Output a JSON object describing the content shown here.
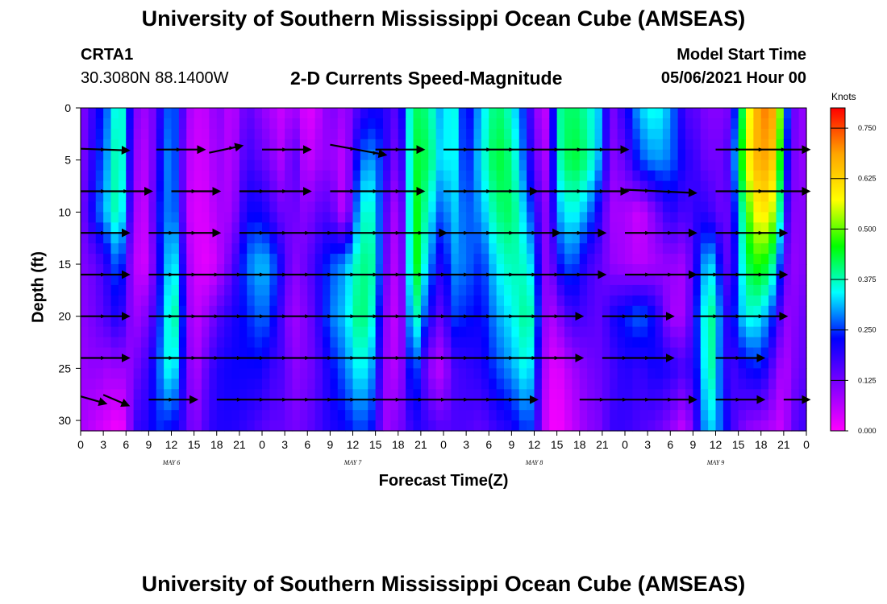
{
  "title_top": "University of Southern Mississippi Ocean Cube (AMSEAS)",
  "title_bottom": "University of Southern Mississippi Ocean Cube (AMSEAS)",
  "station": {
    "id": "CRTA1",
    "location": "30.3080N  88.1400W"
  },
  "model_start": {
    "label": "Model Start Time",
    "value": "05/06/2021 Hour 00"
  },
  "chart_data": {
    "type": "heatmap",
    "title": "2-D Currents Speed-Magnitude",
    "xlabel": "Forecast Time(Z)",
    "ylabel": "Depth (ft)",
    "x_range_hours": [
      0,
      96
    ],
    "ylim": [
      0,
      31
    ],
    "y_inverted": true,
    "x_ticks": [
      "0",
      "3",
      "6",
      "9",
      "12",
      "15",
      "18",
      "21",
      "0",
      "3",
      "6",
      "9",
      "12",
      "15",
      "18",
      "21",
      "0",
      "3",
      "6",
      "9",
      "12",
      "15",
      "18",
      "21",
      "0",
      "3",
      "6",
      "9",
      "12",
      "15",
      "18",
      "21",
      "0"
    ],
    "y_ticks": [
      "0",
      "5",
      "10",
      "15",
      "20",
      "25",
      "30"
    ],
    "y_tick_values": [
      0,
      5,
      10,
      15,
      20,
      25,
      30
    ],
    "date_labels": [
      {
        "label": "MAY  6",
        "hour": 12
      },
      {
        "label": "MAY  7",
        "hour": 36
      },
      {
        "label": "MAY  8",
        "hour": 60
      },
      {
        "label": "MAY  9",
        "hour": 84
      }
    ],
    "colorbar": {
      "unit": "Knots",
      "range": [
        0,
        0.8
      ],
      "tick_labels": [
        "0.750",
        "0.625",
        "0.500",
        "0.375",
        "0.250",
        "0.125",
        "0.000"
      ],
      "tick_values": [
        0.75,
        0.625,
        0.5,
        0.375,
        0.25,
        0.125,
        0.0
      ],
      "stops": [
        "#ff00ff",
        "#8000ff",
        "#0000ff",
        "#00ffff",
        "#00ff00",
        "#ffff00",
        "#ffa500",
        "#ff0000"
      ]
    },
    "speed_profile": [
      {
        "hour": 0,
        "values": [
          0.1,
          0.1,
          0.11,
          0.11,
          0.1,
          0.09,
          0.08
        ]
      },
      {
        "hour": 2,
        "values": [
          0.2,
          0.22,
          0.25,
          0.14,
          0.13,
          0.1,
          0.05
        ]
      },
      {
        "hour": 4,
        "values": [
          0.3,
          0.33,
          0.35,
          0.22,
          0.18,
          0.08,
          0.02
        ]
      },
      {
        "hour": 5,
        "values": [
          0.4,
          0.42,
          0.4,
          0.3,
          0.22,
          0.1,
          0.0
        ]
      },
      {
        "hour": 6,
        "values": [
          0.32,
          0.3,
          0.28,
          0.18,
          0.15,
          0.08,
          0.03
        ]
      },
      {
        "hour": 7,
        "values": [
          0.12,
          0.1,
          0.08,
          0.06,
          0.08,
          0.12,
          0.18
        ]
      },
      {
        "hour": 9,
        "values": [
          0.08,
          0.06,
          0.05,
          0.04,
          0.12,
          0.18,
          0.2
        ]
      },
      {
        "hour": 10,
        "values": [
          0.16,
          0.18,
          0.22,
          0.18,
          0.2,
          0.25,
          0.25
        ]
      },
      {
        "hour": 12,
        "values": [
          0.3,
          0.32,
          0.3,
          0.36,
          0.4,
          0.38,
          0.22
        ]
      },
      {
        "hour": 13,
        "values": [
          0.22,
          0.2,
          0.24,
          0.3,
          0.36,
          0.28,
          0.2
        ]
      },
      {
        "hour": 14,
        "values": [
          0.1,
          0.08,
          0.06,
          0.1,
          0.12,
          0.15,
          0.16
        ]
      },
      {
        "hour": 15,
        "values": [
          0.05,
          0.04,
          0.03,
          0.04,
          0.05,
          0.06,
          0.1
        ]
      },
      {
        "hour": 17,
        "values": [
          0.06,
          0.05,
          0.04,
          0.02,
          0.1,
          0.16,
          0.18
        ]
      },
      {
        "hour": 18,
        "values": [
          0.12,
          0.1,
          0.08,
          0.05,
          0.15,
          0.2,
          0.2
        ]
      },
      {
        "hour": 20,
        "values": [
          0.05,
          0.06,
          0.08,
          0.14,
          0.2,
          0.22,
          0.2
        ]
      },
      {
        "hour": 22,
        "values": [
          0.15,
          0.18,
          0.22,
          0.28,
          0.24,
          0.22,
          0.18
        ]
      },
      {
        "hour": 24,
        "values": [
          0.1,
          0.14,
          0.22,
          0.32,
          0.28,
          0.22,
          0.15
        ]
      },
      {
        "hour": 25,
        "values": [
          0.08,
          0.12,
          0.18,
          0.3,
          0.26,
          0.18,
          0.14
        ]
      },
      {
        "hour": 27,
        "values": [
          0.04,
          0.06,
          0.12,
          0.18,
          0.14,
          0.16,
          0.14
        ]
      },
      {
        "hour": 28,
        "values": [
          0.1,
          0.18,
          0.14,
          0.1,
          0.08,
          0.1,
          0.12
        ]
      },
      {
        "hour": 30,
        "values": [
          0.02,
          0.04,
          0.1,
          0.14,
          0.12,
          0.12,
          0.14
        ]
      },
      {
        "hour": 31,
        "values": [
          0.04,
          0.08,
          0.14,
          0.18,
          0.16,
          0.14,
          0.16
        ]
      },
      {
        "hour": 33,
        "values": [
          0.12,
          0.1,
          0.16,
          0.26,
          0.28,
          0.22,
          0.2
        ]
      },
      {
        "hour": 35,
        "values": [
          0.08,
          0.05,
          0.04,
          0.3,
          0.32,
          0.28,
          0.22
        ]
      },
      {
        "hour": 37,
        "values": [
          0.18,
          0.28,
          0.36,
          0.4,
          0.42,
          0.36,
          0.26
        ]
      },
      {
        "hour": 39,
        "values": [
          0.22,
          0.3,
          0.36,
          0.38,
          0.34,
          0.28,
          0.22
        ]
      },
      {
        "hour": 40,
        "values": [
          0.2,
          0.22,
          0.18,
          0.16,
          0.12,
          0.1,
          0.08
        ]
      },
      {
        "hour": 42,
        "values": [
          0.14,
          0.1,
          0.05,
          0.04,
          0.04,
          0.06,
          0.12
        ]
      },
      {
        "hour": 43,
        "values": [
          0.3,
          0.26,
          0.22,
          0.2,
          0.18,
          0.16,
          0.14
        ]
      },
      {
        "hour": 44,
        "values": [
          0.42,
          0.44,
          0.48,
          0.5,
          0.42,
          0.3,
          0.2
        ]
      },
      {
        "hour": 46,
        "values": [
          0.4,
          0.42,
          0.36,
          0.3,
          0.22,
          0.1,
          0.18
        ]
      },
      {
        "hour": 48,
        "values": [
          0.28,
          0.3,
          0.24,
          0.18,
          0.12,
          0.05,
          0.15
        ]
      },
      {
        "hour": 49,
        "values": [
          0.4,
          0.38,
          0.34,
          0.3,
          0.26,
          0.16,
          0.16
        ]
      },
      {
        "hour": 51,
        "values": [
          0.2,
          0.22,
          0.26,
          0.28,
          0.24,
          0.18,
          0.16
        ]
      },
      {
        "hour": 53,
        "values": [
          0.32,
          0.34,
          0.3,
          0.24,
          0.22,
          0.2,
          0.14
        ]
      },
      {
        "hour": 55,
        "values": [
          0.42,
          0.44,
          0.4,
          0.34,
          0.3,
          0.26,
          0.18
        ]
      },
      {
        "hour": 57,
        "values": [
          0.36,
          0.4,
          0.42,
          0.38,
          0.34,
          0.3,
          0.2
        ]
      },
      {
        "hour": 59,
        "values": [
          0.22,
          0.24,
          0.3,
          0.36,
          0.4,
          0.36,
          0.26
        ]
      },
      {
        "hour": 60,
        "values": [
          0.12,
          0.16,
          0.22,
          0.3,
          0.36,
          0.3,
          0.24
        ]
      },
      {
        "hour": 61,
        "values": [
          0.06,
          0.08,
          0.12,
          0.14,
          0.14,
          0.1,
          0.08
        ]
      },
      {
        "hour": 62,
        "values": [
          0.06,
          0.08,
          0.1,
          0.08,
          0.06,
          0.04,
          0.02
        ]
      },
      {
        "hour": 63,
        "values": [
          0.38,
          0.36,
          0.3,
          0.22,
          0.1,
          0.02,
          0.0
        ]
      },
      {
        "hour": 65,
        "values": [
          0.42,
          0.44,
          0.36,
          0.28,
          0.18,
          0.08,
          0.05
        ]
      },
      {
        "hour": 67,
        "values": [
          0.38,
          0.4,
          0.3,
          0.18,
          0.16,
          0.12,
          0.1
        ]
      },
      {
        "hour": 69,
        "values": [
          0.3,
          0.28,
          0.18,
          0.14,
          0.14,
          0.14,
          0.12
        ]
      },
      {
        "hour": 70,
        "values": [
          0.1,
          0.1,
          0.08,
          0.1,
          0.2,
          0.16,
          0.18
        ]
      },
      {
        "hour": 72,
        "values": [
          0.2,
          0.14,
          0.08,
          0.08,
          0.24,
          0.2,
          0.18
        ]
      },
      {
        "hour": 74,
        "values": [
          0.32,
          0.26,
          0.04,
          0.06,
          0.28,
          0.18,
          0.16
        ]
      },
      {
        "hour": 76,
        "values": [
          0.36,
          0.3,
          0.12,
          0.08,
          0.22,
          0.22,
          0.14
        ]
      },
      {
        "hour": 78,
        "values": [
          0.3,
          0.28,
          0.2,
          0.1,
          0.08,
          0.2,
          0.1
        ]
      },
      {
        "hour": 80,
        "values": [
          0.16,
          0.2,
          0.16,
          0.08,
          0.08,
          0.16,
          0.04
        ]
      },
      {
        "hour": 82,
        "values": [
          0.14,
          0.16,
          0.2,
          0.26,
          0.3,
          0.26,
          0.24
        ]
      },
      {
        "hour": 83,
        "values": [
          0.1,
          0.12,
          0.18,
          0.34,
          0.4,
          0.42,
          0.34
        ]
      },
      {
        "hour": 84,
        "values": [
          0.12,
          0.14,
          0.16,
          0.3,
          0.38,
          0.34,
          0.3
        ]
      },
      {
        "hour": 85,
        "values": [
          0.1,
          0.12,
          0.12,
          0.16,
          0.2,
          0.22,
          0.26
        ]
      },
      {
        "hour": 86,
        "values": [
          0.14,
          0.2,
          0.16,
          0.14,
          0.2,
          0.16,
          0.18
        ]
      },
      {
        "hour": 88,
        "values": [
          0.52,
          0.56,
          0.46,
          0.42,
          0.36,
          0.22,
          0.1
        ]
      },
      {
        "hour": 90,
        "values": [
          0.72,
          0.7,
          0.62,
          0.48,
          0.34,
          0.24,
          0.08
        ]
      },
      {
        "hour": 92,
        "values": [
          0.68,
          0.62,
          0.52,
          0.36,
          0.22,
          0.12,
          0.06
        ]
      },
      {
        "hour": 93,
        "values": [
          0.36,
          0.3,
          0.24,
          0.16,
          0.1,
          0.06,
          0.04
        ]
      },
      {
        "hour": 94,
        "values": [
          0.16,
          0.14,
          0.12,
          0.1,
          0.1,
          0.1,
          0.14
        ]
      },
      {
        "hour": 95,
        "values": [
          0.1,
          0.1,
          0.1,
          0.1,
          0.12,
          0.14,
          0.16
        ]
      },
      {
        "hour": 96,
        "values": [
          0.1,
          0.1,
          0.12,
          0.12,
          0.14,
          0.14,
          0.18
        ]
      }
    ],
    "profile_depths": [
      0,
      5,
      10,
      15,
      20,
      25,
      31
    ],
    "vector_rows": [
      {
        "depth": 4,
        "segments": [
          {
            "from": 0,
            "to": 6,
            "dir": 2
          },
          {
            "from": 10,
            "to": 16,
            "dir": 0
          },
          {
            "from": 17,
            "to": 21,
            "dir": -8
          },
          {
            "from": 24,
            "to": 30,
            "dir": 0
          },
          {
            "from": 33,
            "to": 40,
            "dir": 12
          },
          {
            "from": 39,
            "to": 45,
            "dir": 0
          },
          {
            "from": 48,
            "to": 72,
            "dir": 0
          },
          {
            "from": 84,
            "to": 96,
            "dir": 0
          }
        ]
      },
      {
        "depth": 8,
        "segments": [
          {
            "from": 0,
            "to": 9,
            "dir": 0
          },
          {
            "from": 12,
            "to": 18,
            "dir": 0
          },
          {
            "from": 21,
            "to": 30,
            "dir": 0
          },
          {
            "from": 33,
            "to": 45,
            "dir": 0
          },
          {
            "from": 48,
            "to": 60,
            "dir": 0
          },
          {
            "from": 60,
            "to": 72,
            "dir": 0
          },
          {
            "from": 72,
            "to": 81,
            "dir": 4
          },
          {
            "from": 84,
            "to": 96,
            "dir": 0
          }
        ]
      },
      {
        "depth": 12,
        "segments": [
          {
            "from": 0,
            "to": 6,
            "dir": 0
          },
          {
            "from": 9,
            "to": 18,
            "dir": 0
          },
          {
            "from": 21,
            "to": 48,
            "dir": 0
          },
          {
            "from": 48,
            "to": 63,
            "dir": 0
          },
          {
            "from": 63,
            "to": 69,
            "dir": 0
          },
          {
            "from": 72,
            "to": 81,
            "dir": 0
          },
          {
            "from": 84,
            "to": 93,
            "dir": 0
          }
        ]
      },
      {
        "depth": 16,
        "segments": [
          {
            "from": 0,
            "to": 6,
            "dir": 0
          },
          {
            "from": 9,
            "to": 69,
            "dir": 0
          },
          {
            "from": 72,
            "to": 81,
            "dir": 0
          },
          {
            "from": 81,
            "to": 93,
            "dir": 0
          }
        ]
      },
      {
        "depth": 20,
        "segments": [
          {
            "from": 0,
            "to": 6,
            "dir": 0
          },
          {
            "from": 9,
            "to": 66,
            "dir": 0
          },
          {
            "from": 69,
            "to": 78,
            "dir": 0
          },
          {
            "from": 81,
            "to": 93,
            "dir": 0
          }
        ]
      },
      {
        "depth": 24,
        "segments": [
          {
            "from": 0,
            "to": 6,
            "dir": 0
          },
          {
            "from": 9,
            "to": 66,
            "dir": 0
          },
          {
            "from": 69,
            "to": 78,
            "dir": 0
          },
          {
            "from": 84,
            "to": 90,
            "dir": 0
          }
        ]
      },
      {
        "depth": 28,
        "segments": [
          {
            "from": 0,
            "to": 3,
            "dir": 8
          },
          {
            "from": 3,
            "to": 6,
            "dir": 12
          },
          {
            "from": 9,
            "to": 15,
            "dir": 0
          },
          {
            "from": 18,
            "to": 60,
            "dir": 0
          },
          {
            "from": 66,
            "to": 81,
            "dir": 0
          },
          {
            "from": 84,
            "to": 90,
            "dir": 0
          },
          {
            "from": 93,
            "to": 96,
            "dir": 0
          }
        ]
      }
    ]
  }
}
